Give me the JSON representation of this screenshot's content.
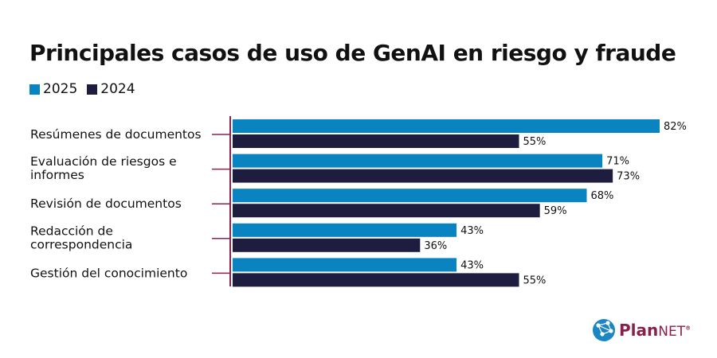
{
  "chart_data": {
    "type": "bar",
    "orientation": "horizontal",
    "title": "Principales casos de uso de GenAI en riesgo y fraude",
    "categories": [
      [
        "Resúmenes de documentos"
      ],
      [
        "Evaluación de riesgos e",
        "informes"
      ],
      [
        "Revisión de documentos"
      ],
      [
        "Redacción de",
        "correspondencia"
      ],
      [
        "Gestión del conocimiento"
      ]
    ],
    "series": [
      {
        "name": "2025",
        "color": "#0a84c1",
        "values": [
          82,
          71,
          68,
          43,
          43
        ]
      },
      {
        "name": "2024",
        "color": "#1e1d3f",
        "values": [
          55,
          73,
          59,
          36,
          55
        ]
      }
    ],
    "value_suffix": "%",
    "xlim": [
      0,
      100
    ],
    "grid": false,
    "legend": "top-left",
    "axis_color": "#8a2450"
  },
  "logo": {
    "text_main": "Plan",
    "text_net": "NET",
    "mark": "®"
  }
}
